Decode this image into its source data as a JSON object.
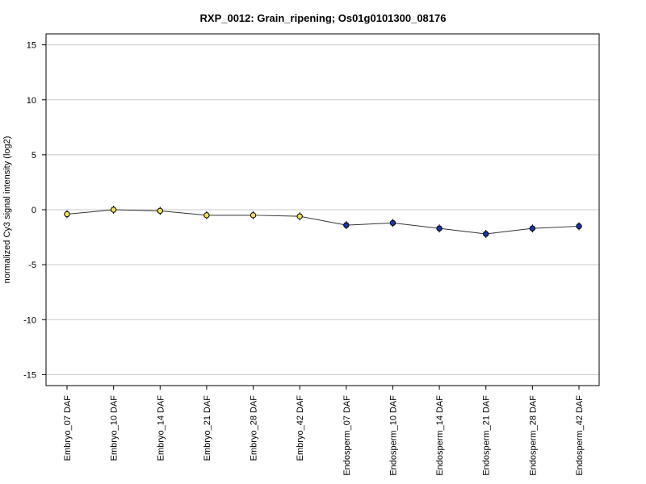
{
  "chart_data": {
    "type": "line",
    "title": "RXP_0012: Grain_ripening; Os01g0101300_08176",
    "xlabel": "",
    "ylabel": "normalized Cy3 signal intensity (log2)",
    "ylim": [
      -16,
      16
    ],
    "yticks": [
      -15,
      -10,
      -5,
      0,
      5,
      10,
      15
    ],
    "grid": "horizontal",
    "categories": [
      "Embryo_07 DAF",
      "Embryo_10 DAF",
      "Embryo_14 DAF",
      "Embryo_21 DAF",
      "Embryo_28 DAF",
      "Embryo_42 DAF",
      "Endosperm_07 DAF",
      "Endosperm_10 DAF",
      "Endosperm_14 DAF",
      "Endosperm_21 DAF",
      "Endosperm_28 DAF",
      "Endosperm_42 DAF"
    ],
    "values": [
      -0.4,
      0.0,
      -0.1,
      -0.5,
      -0.5,
      -0.6,
      -1.4,
      -1.2,
      -1.7,
      -2.2,
      -1.7,
      -1.5
    ],
    "point_colors": [
      "#f2e25a",
      "#f2e25a",
      "#f2e25a",
      "#f2e25a",
      "#f2e25a",
      "#f2e25a",
      "#1a36a8",
      "#1a36a8",
      "#1a36a8",
      "#1a36a8",
      "#1a36a8",
      "#1a36a8"
    ],
    "line_color": "#333333",
    "grid_color": "#c8c8c8"
  }
}
